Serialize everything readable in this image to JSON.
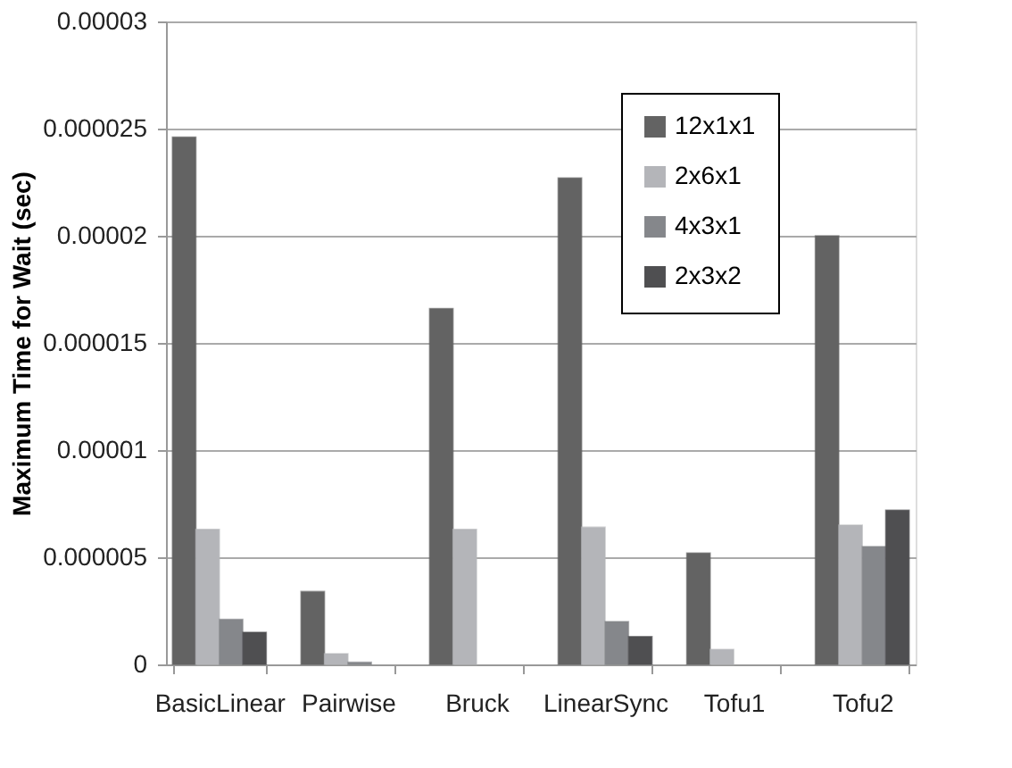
{
  "chart_data": {
    "type": "bar",
    "ylabel": "Maximum Time for Wait (sec)",
    "categories": [
      "BasicLinear",
      "Pairwise",
      "Bruck",
      "LinearSync",
      "Tofu1",
      "Tofu2"
    ],
    "series": [
      {
        "name": "12x1x1",
        "color": "#636363",
        "values": [
          2.46e-05,
          3.4e-06,
          1.66e-05,
          2.27e-05,
          5.2e-06,
          2e-05
        ]
      },
      {
        "name": "2x6x1",
        "color": "#b4b5b9",
        "values": [
          6.3e-06,
          5e-07,
          6.3e-06,
          6.4e-06,
          7e-07,
          6.5e-06
        ]
      },
      {
        "name": "4x3x1",
        "color": "#85878b",
        "values": [
          2.1e-06,
          1e-07,
          null,
          2e-06,
          null,
          5.5e-06
        ]
      },
      {
        "name": "2x3x2",
        "color": "#4f4f51",
        "values": [
          1.5e-06,
          null,
          null,
          1.3e-06,
          null,
          7.2e-06
        ]
      }
    ],
    "ylim": [
      0,
      3e-05
    ],
    "yticks": [
      0,
      {
        "value": 5e-06,
        "label": "0.000005"
      },
      {
        "value": 1e-05,
        "label": "0.00001"
      },
      {
        "value": 1.5e-05,
        "label": "0.000015"
      },
      {
        "value": 2e-05,
        "label": "0.00002"
      },
      {
        "value": 2.5e-05,
        "label": "0.000025"
      },
      {
        "value": 3e-05,
        "label": "0.00003"
      }
    ],
    "grid": "y",
    "legend": "top right"
  }
}
